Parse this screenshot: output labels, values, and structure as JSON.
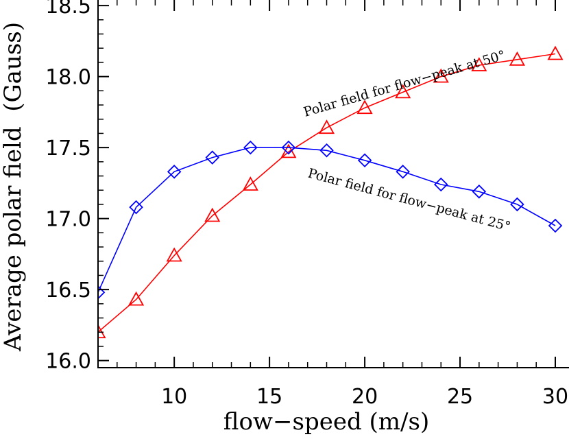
{
  "chart_data": {
    "type": "line",
    "title": "",
    "xlabel": "flow−speed (m/s)",
    "ylabel": "Average polar field  (Gauss)",
    "xlim": [
      6,
      30
    ],
    "ylim": [
      15.95,
      18.52
    ],
    "x_ticks": [
      "10",
      "15",
      "20",
      "25",
      "30"
    ],
    "y_ticks": [
      "16.0",
      "16.5",
      "17.0",
      "17.5",
      "18.0",
      "18.5"
    ],
    "grid": false,
    "series": [
      {
        "color": "#ff0000",
        "marker": "triangle",
        "x": [
          6,
          8,
          10,
          12,
          14,
          16,
          18,
          20,
          22,
          24,
          26,
          28,
          30
        ],
        "y": [
          16.2,
          16.43,
          16.74,
          17.02,
          17.24,
          17.47,
          17.64,
          17.78,
          17.89,
          18.0,
          18.08,
          18.12,
          18.16
        ]
      },
      {
        "color": "#0000ff",
        "marker": "diamond",
        "x": [
          6,
          8,
          10,
          12,
          14,
          16,
          18,
          20,
          22,
          24,
          26,
          28,
          30
        ],
        "y": [
          16.48,
          17.08,
          17.33,
          17.43,
          17.5,
          17.5,
          17.48,
          17.41,
          17.33,
          17.24,
          17.19,
          17.1,
          16.95
        ]
      }
    ],
    "annotations": [
      "Polar field for flow−peak at 50°",
      "Polar field for flow−peak at 25°"
    ]
  }
}
